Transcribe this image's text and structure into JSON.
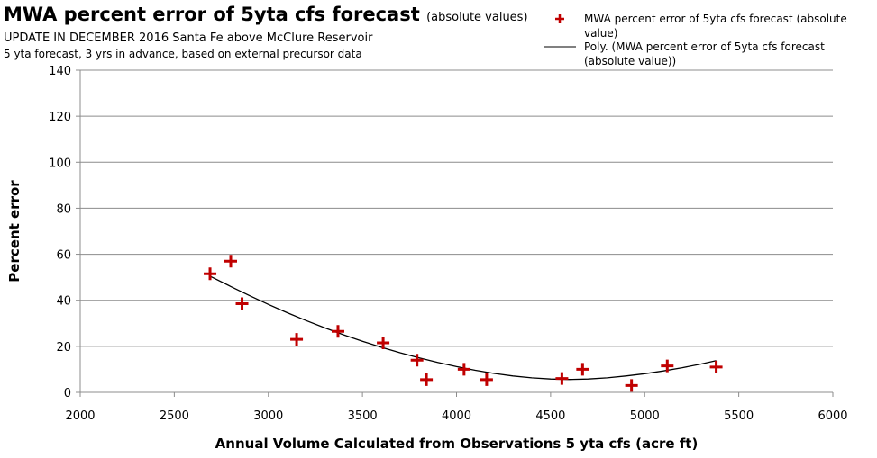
{
  "chart_data": {
    "type": "scatter",
    "title": "MWA percent error of 5yta cfs forecast",
    "title_suffix": "(absolute values)",
    "subtitle_1": "UPDATE IN DECEMBER 2016  Santa Fe above McClure Reservoir",
    "subtitle_2": "5 yta forecast, 3 yrs in advance, based on external precursor data",
    "xlabel": "Annual Volume Calculated from Observations 5 yta cfs  (acre ft)",
    "ylabel": "Percent error",
    "xlim": [
      2000,
      6000
    ],
    "ylim": [
      0,
      140
    ],
    "xticks": [
      "2000",
      "2500",
      "3000",
      "3500",
      "4000",
      "4500",
      "5000",
      "5500",
      "6000"
    ],
    "yticks": [
      "0",
      "20",
      "40",
      "60",
      "80",
      "100",
      "120",
      "140"
    ],
    "grid": "horizontal",
    "legend_position": "top-right",
    "series": [
      {
        "name": "MWA percent error of 5yta cfs forecast (absolute value)",
        "marker": "plus",
        "color": "#c00000",
        "x": [
          2690,
          2800,
          2860,
          3150,
          3370,
          3610,
          3790,
          3840,
          4040,
          4160,
          4560,
          4670,
          4930,
          5120,
          5380
        ],
        "y": [
          51.5,
          57,
          38.5,
          23,
          26.5,
          21.5,
          14,
          5.5,
          10,
          5.5,
          6,
          10,
          3,
          11.5,
          11
        ]
      },
      {
        "name": "Poly. (MWA percent error of 5yta cfs forecast (absolute value))",
        "type": "line",
        "color": "#000000",
        "x": [
          2690,
          2800,
          2900,
          3000,
          3100,
          3200,
          3300,
          3400,
          3500,
          3600,
          3700,
          3800,
          3900,
          4000,
          4100,
          4200,
          4300,
          4400,
          4500,
          4600,
          4700,
          4800,
          4900,
          5000,
          5100,
          5200,
          5300,
          5380
        ],
        "y": [
          50.5,
          46.0,
          42.0,
          38.2,
          34.6,
          31.2,
          28.0,
          25.0,
          22.2,
          19.6,
          17.2,
          15.0,
          13.0,
          11.2,
          9.6,
          8.2,
          7.1,
          6.3,
          5.8,
          5.6,
          5.8,
          6.3,
          7.1,
          8.1,
          9.3,
          10.7,
          12.3,
          13.8
        ]
      }
    ]
  }
}
